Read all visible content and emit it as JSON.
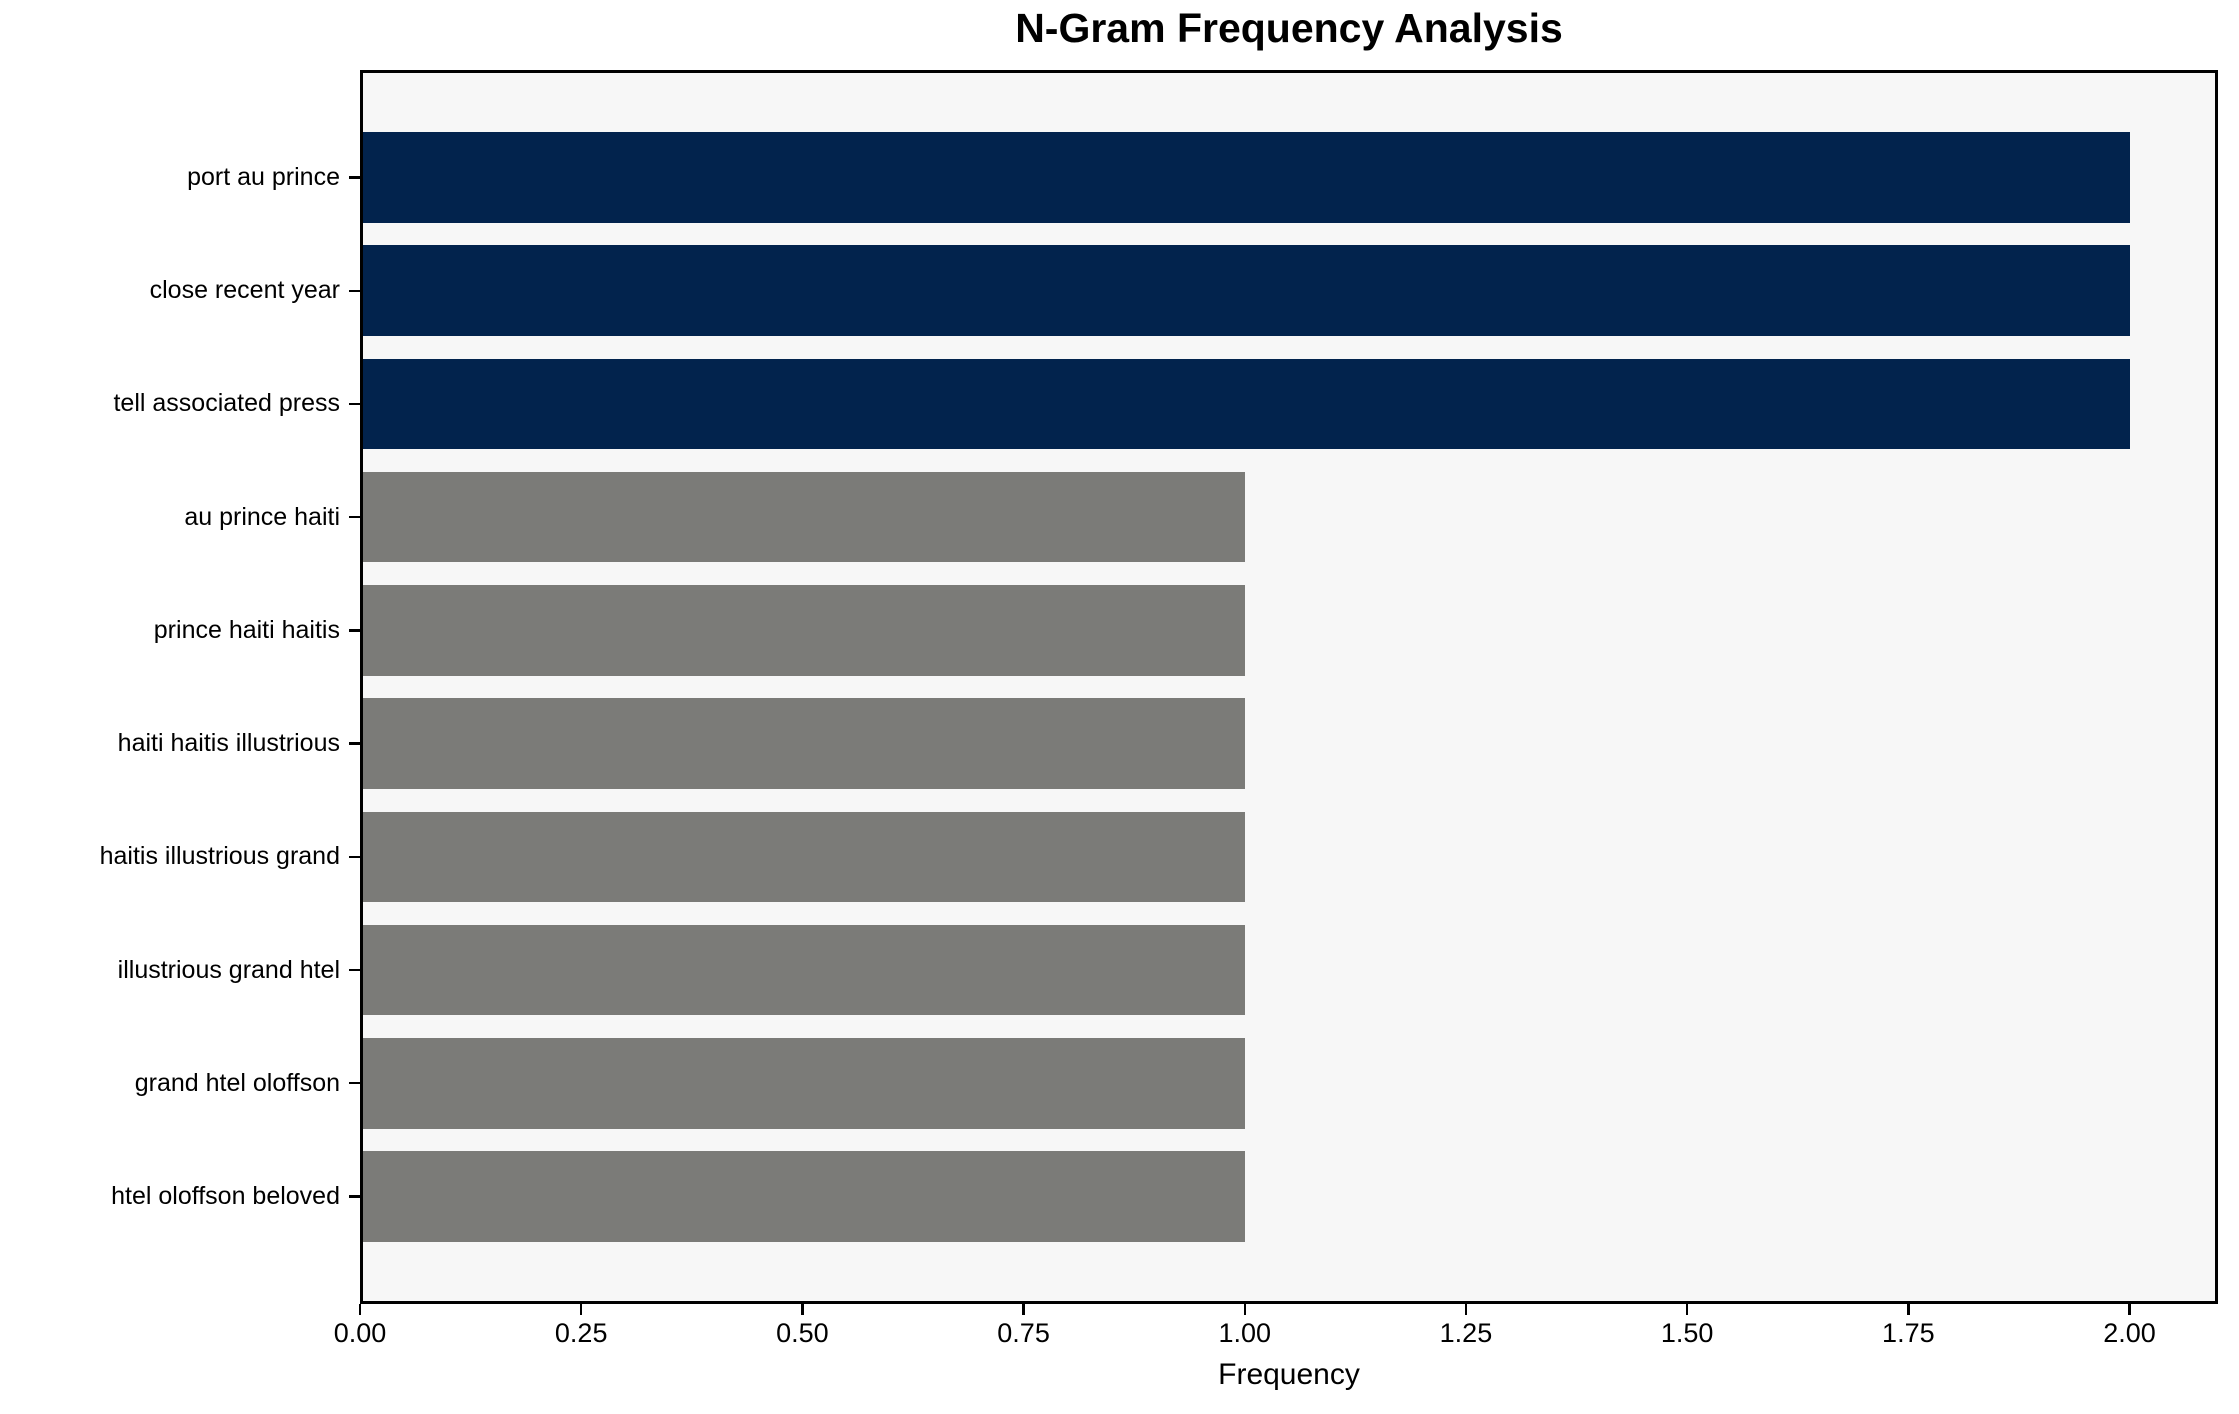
{
  "chart_data": {
    "type": "bar",
    "orientation": "horizontal",
    "title": "N-Gram Frequency Analysis",
    "xlabel": "Frequency",
    "ylabel": "",
    "categories": [
      "port au prince",
      "close recent year",
      "tell associated press",
      "au prince haiti",
      "prince haiti haitis",
      "haiti haitis illustrious",
      "haitis illustrious grand",
      "illustrious grand htel",
      "grand htel oloffson",
      "htel oloffson beloved"
    ],
    "values": [
      2,
      2,
      2,
      1,
      1,
      1,
      1,
      1,
      1,
      1
    ],
    "bar_colors": [
      "#02234d",
      "#02234d",
      "#02234d",
      "#7b7b78",
      "#7b7b78",
      "#7b7b78",
      "#7b7b78",
      "#7b7b78",
      "#7b7b78",
      "#7b7b78"
    ],
    "xlim": [
      0,
      2.1
    ],
    "xtick_labels": [
      "0.00",
      "0.25",
      "0.50",
      "0.75",
      "1.00",
      "1.25",
      "1.50",
      "1.75",
      "2.00"
    ],
    "xtick_values": [
      0,
      0.25,
      0.5,
      0.75,
      1.0,
      1.25,
      1.5,
      1.75,
      2.0
    ],
    "grid": false,
    "legend": false,
    "colors": {
      "highlight_bar": "#02234d",
      "default_bar": "#7b7b78",
      "plot_background": "#f7f7f7",
      "figure_background": "#ffffff",
      "spine": "#000000",
      "text": "#000000"
    }
  }
}
